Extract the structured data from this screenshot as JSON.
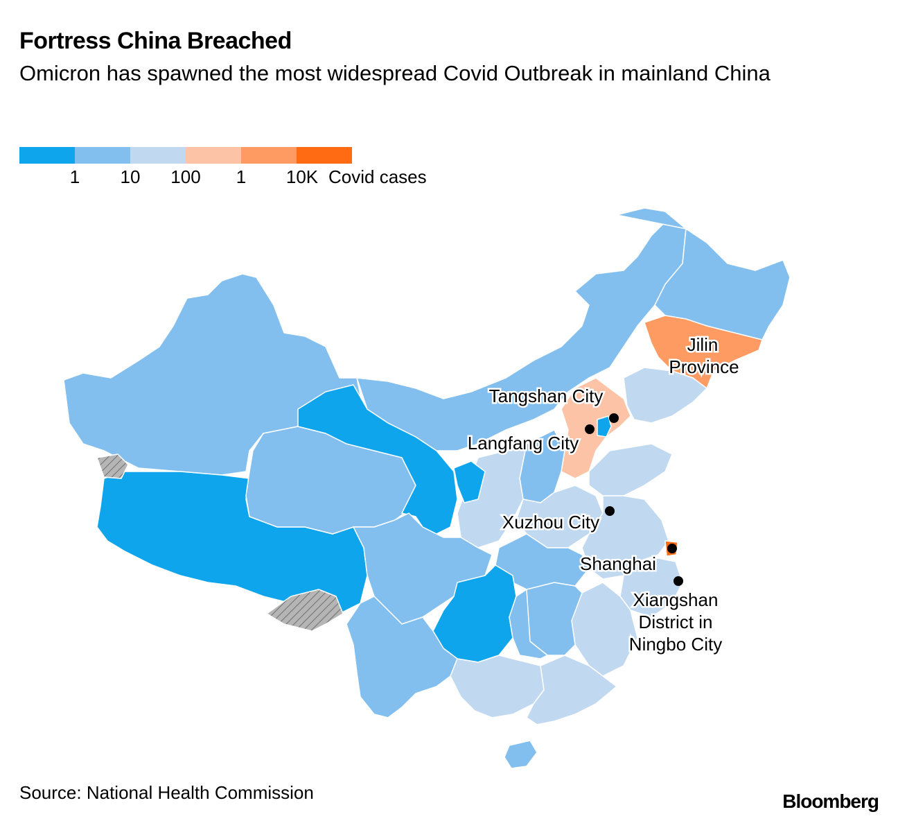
{
  "header": {
    "title": "Fortress China Breached",
    "subtitle": "Omicron has spawned the most widespread Covid Outbreak in mainland China"
  },
  "legend": {
    "colors": [
      "#0ea5ec",
      "#82bfef",
      "#c0d9f1",
      "#fcc3a7",
      "#fd9b63",
      "#fe6b12"
    ],
    "ticks": [
      "1",
      "10",
      "100",
      "1",
      "10K"
    ],
    "unit": "Covid cases"
  },
  "map": {
    "colors": {
      "tier1": "#0ea5ec",
      "tier2": "#82bfef",
      "tier3": "#c0d9f1",
      "tier4": "#fcc3a7",
      "tier5": "#fd9b63",
      "tier6": "#fe6b12",
      "disputed": "#b5b5b5"
    },
    "labels": {
      "jilin_1": "Jilin",
      "jilin_2": "Province",
      "tangshan": "Tangshan City",
      "langfang": "Langfang City",
      "xuzhou": "Xuzhou City",
      "shanghai": "Shanghai",
      "xiangshan_1": "Xiangshan",
      "xiangshan_2": "District in",
      "xiangshan_3": "Ningbo City"
    }
  },
  "footer": {
    "source": "Source: National Health Commission",
    "brand": "Bloomberg"
  }
}
